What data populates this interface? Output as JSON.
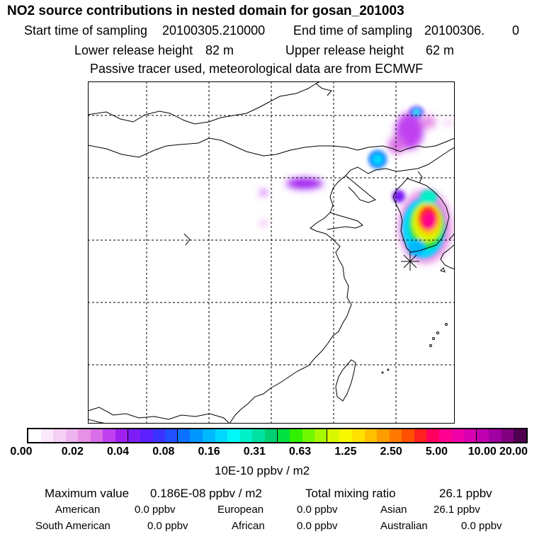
{
  "header": {
    "title": "NO2 source contributions in nested domain for gosan_201003",
    "start_label": "Start time of sampling",
    "start_value": "20100305.210000",
    "end_label": "End time of sampling",
    "end_value": "20100306.",
    "end_extra": "0",
    "lower_label": "Lower release height",
    "lower_value": "82 m",
    "upper_label": "Upper release height",
    "upper_value": "62 m",
    "note": "Passive tracer used, meteorological data are from ECMWF"
  },
  "colorbar": {
    "ticks": [
      "0.00",
      "0.02",
      "0.04",
      "0.08",
      "0.16",
      "0.31",
      "0.63",
      "1.25",
      "2.50",
      "5.00",
      "10.00",
      "20.00"
    ],
    "unit": "10E-10 ppbv / m2",
    "colors": [
      "#ffffff",
      "#fbe8fb",
      "#f5d0f5",
      "#eeb4ee",
      "#e690e6",
      "#d96ee6",
      "#c040f0",
      "#a020f0",
      "#7d1df5",
      "#5a20ff",
      "#3b32ff",
      "#2050ff",
      "#0a72ff",
      "#0096ff",
      "#00b8ff",
      "#00d8ff",
      "#00f8f8",
      "#00f0c8",
      "#00e0a0",
      "#00d070",
      "#00e040",
      "#30f000",
      "#70f800",
      "#a8f800",
      "#d8f800",
      "#f8f800",
      "#ffe000",
      "#ffc000",
      "#ff9c00",
      "#ff7800",
      "#ff5000",
      "#ff2020",
      "#ff0060",
      "#ff0090",
      "#f000a8",
      "#d800b0",
      "#c000b0",
      "#a000a0",
      "#800080",
      "#500050"
    ]
  },
  "stats": {
    "max_label": "Maximum value",
    "max_value": "0.186E-08 ppbv / m2",
    "total_label": "Total mixing ratio",
    "total_value": "26.1 ppbv",
    "american_label": "American",
    "american_value": "0.0 ppbv",
    "european_label": "European",
    "european_value": "0.0 ppbv",
    "asian_label": "Asian",
    "asian_value": "26.1 ppbv",
    "south_american_label": "South American",
    "south_american_value": "0.0 ppbv",
    "african_label": "African",
    "african_value": "0.0 ppbv",
    "australian_label": "Australian",
    "australian_value": "0.0 ppbv"
  }
}
